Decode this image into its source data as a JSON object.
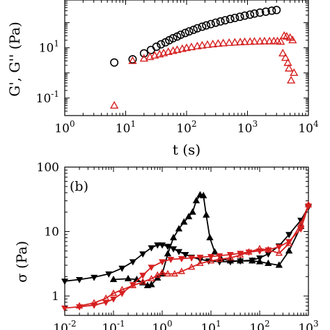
{
  "chart_data": [
    {
      "type": "scatter",
      "panel": "a",
      "xlabel": "t (s)",
      "ylabel": "G', G'' (Pa)",
      "xscale": "log",
      "yscale": "log",
      "xlim": [
        1,
        10000
      ],
      "ylim": [
        0.02,
        800
      ],
      "x_ticks": [
        {
          "v": 1,
          "t": "10",
          "e": "0"
        },
        {
          "v": 10,
          "t": "10",
          "e": "1"
        },
        {
          "v": 100,
          "t": "10",
          "e": "2"
        },
        {
          "v": 1000,
          "t": "10",
          "e": "3"
        },
        {
          "v": 10000,
          "t": "10",
          "e": "4"
        }
      ],
      "y_ticks": [
        {
          "v": 0.1,
          "t": "10",
          "e": "-1"
        },
        {
          "v": 10,
          "t": "10",
          "e": "1"
        }
      ],
      "grid": false,
      "series": [
        {
          "label": "G'",
          "marker": "circle",
          "color": "#000000",
          "x": [
            6.5,
            13,
            20,
            26,
            32,
            38,
            45,
            52,
            60,
            70,
            80,
            95,
            110,
            130,
            150,
            180,
            210,
            250,
            300,
            360,
            430,
            520,
            620,
            750,
            900,
            1100,
            1300,
            1600,
            2000,
            2500,
            3000
          ],
          "y": [
            2.6,
            3.5,
            6.0,
            8.2,
            11.0,
            13.8,
            16.5,
            20.0,
            24.0,
            28.0,
            33.0,
            39.0,
            45.0,
            52.0,
            60.0,
            69.0,
            78.0,
            88.0,
            100.0,
            112.0,
            125.0,
            140.0,
            155.0,
            172.0,
            190.0,
            210.0,
            230.0,
            252.0,
            275.0,
            300.0,
            320.0
          ]
        },
        {
          "label": "G''",
          "marker": "triangle-up",
          "color": "#d62020",
          "x": [
            6.5,
            13,
            20,
            25,
            30,
            36,
            42,
            50,
            60,
            70,
            85,
            100,
            120,
            150,
            180,
            220,
            270,
            330,
            400,
            500,
            620,
            760,
            900,
            1100,
            1300,
            1600,
            1900,
            2300,
            2700,
            3100,
            3500,
            3800,
            4000,
            4200,
            4400,
            4600,
            4800,
            5000,
            5200,
            5500,
            5800
          ],
          "y": [
            0.05,
            3.0,
            3.7,
            4.3,
            4.9,
            5.5,
            6.1,
            6.8,
            7.5,
            8.2,
            9.0,
            9.8,
            10.6,
            11.5,
            12.3,
            13.1,
            13.8,
            14.5,
            15.1,
            15.7,
            16.2,
            16.6,
            17.0,
            17.3,
            17.6,
            17.8,
            18.0,
            18.1,
            18.2,
            18.2,
            17.5,
            6.0,
            30.0,
            4.0,
            28.0,
            2.5,
            1.5,
            25.0,
            0.5,
            20.0,
            1.0
          ]
        }
      ]
    },
    {
      "type": "line",
      "panel": "b",
      "panel_label": "(b)",
      "xlabel": "",
      "ylabel": "σ (Pa)",
      "xscale": "log",
      "yscale": "log",
      "xlim": [
        0.01,
        1000
      ],
      "ylim": [
        0.5,
        100
      ],
      "x_ticks": [
        {
          "v": 0.01,
          "t": "10",
          "e": "-2"
        },
        {
          "v": 0.1,
          "t": "10",
          "e": "-1"
        },
        {
          "v": 1,
          "t": "10",
          "e": "0"
        },
        {
          "v": 10,
          "t": "10",
          "e": "1"
        },
        {
          "v": 100,
          "t": "10",
          "e": "2"
        },
        {
          "v": 1000,
          "t": "10",
          "e": "3"
        }
      ],
      "y_ticks": [
        {
          "v": 1,
          "t": "1"
        },
        {
          "v": 10,
          "t": "10"
        },
        {
          "v": 100,
          "t": "100"
        }
      ],
      "grid": false,
      "series": [
        {
          "label": "black-down-sweep",
          "marker": "triangle-down",
          "color": "#000000",
          "x": [
            0.01,
            0.02,
            0.04,
            0.08,
            0.15,
            0.25,
            0.4,
            0.6,
            0.8,
            1.0,
            1.3,
            1.7,
            2.2,
            3.0,
            4.0,
            6.0,
            9.0,
            15,
            25,
            40,
            70,
            100,
            150,
            250,
            400,
            700,
            1000
          ],
          "y": [
            1.7,
            1.8,
            1.95,
            2.2,
            2.7,
            3.4,
            4.5,
            5.6,
            6.2,
            6.2,
            5.9,
            5.4,
            4.9,
            4.4,
            4.0,
            3.7,
            3.5,
            3.4,
            3.4,
            3.5,
            3.6,
            3.9,
            4.5,
            6.0,
            9.0,
            15.0,
            24.0
          ]
        },
        {
          "label": "black-up-sweep",
          "marker": "triangle-up",
          "color": "#000000",
          "x": [
            0.1,
            0.2,
            0.3,
            0.4,
            0.5,
            0.6,
            0.8,
            1.0,
            1.3,
            1.7,
            2.2,
            2.8,
            3.5,
            4.2,
            5.0,
            6.0,
            7.0,
            8.0,
            9.5,
            12,
            16,
            25,
            40,
            70,
            100,
            150,
            250,
            400,
            700
          ],
          "y": [
            1.8,
            1.85,
            1.8,
            1.6,
            1.45,
            1.5,
            1.9,
            2.2,
            4.5,
            8.0,
            11.0,
            14.0,
            17.0,
            20.0,
            30.0,
            37.0,
            36.0,
            18.0,
            8.0,
            4.8,
            3.8,
            3.5,
            3.5,
            3.5,
            3.4,
            3.2,
            3.0,
            5.0,
            12.0
          ]
        },
        {
          "label": "red-down-sweep",
          "marker": "triangle-down",
          "color": "#d62020",
          "x": [
            0.01,
            0.02,
            0.04,
            0.07,
            0.1,
            0.15,
            0.25,
            0.4,
            0.6,
            1.0,
            1.5,
            2.5,
            4.0,
            6.0,
            10,
            15,
            25,
            40,
            60,
            100,
            150,
            250,
            400,
            700,
            1000
          ],
          "y": [
            0.65,
            0.68,
            0.72,
            0.8,
            0.9,
            1.1,
            1.5,
            2.1,
            2.8,
            3.4,
            3.7,
            3.8,
            3.9,
            4.0,
            4.1,
            4.2,
            4.4,
            4.6,
            4.8,
            5.0,
            5.2,
            5.8,
            7.0,
            11.0,
            25.0
          ]
        },
        {
          "label": "red-up-sweep",
          "marker": "triangle-up",
          "color": "#d62020",
          "x": [
            0.02,
            0.04,
            0.07,
            0.1,
            0.15,
            0.25,
            0.4,
            0.6,
            0.8,
            1.0,
            1.3,
            1.8,
            2.5,
            4.0,
            6.0,
            10,
            15,
            25,
            40,
            60,
            100,
            150,
            250,
            400,
            700,
            1000
          ],
          "y": [
            0.7,
            0.78,
            0.92,
            1.1,
            1.25,
            1.45,
            1.65,
            1.85,
            2.1,
            2.3,
            2.2,
            2.2,
            2.4,
            2.8,
            3.2,
            3.5,
            3.7,
            3.9,
            4.3,
            4.8,
            5.4,
            5.2,
            4.6,
            6.5,
            13.0,
            26.0
          ]
        }
      ]
    }
  ]
}
